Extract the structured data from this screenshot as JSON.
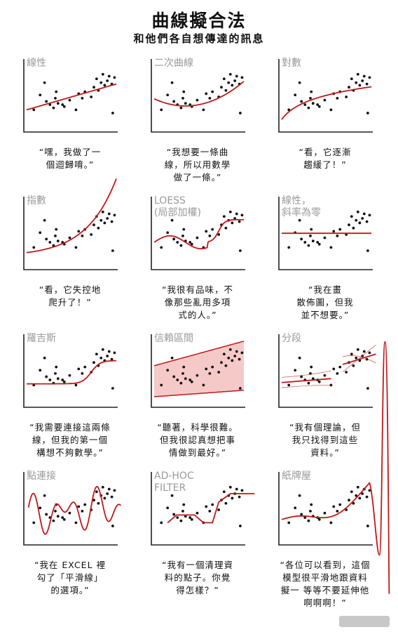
{
  "title": "曲線擬合法",
  "subtitle": "和他們各自想傳達的訊息",
  "panels": [
    {
      "label": "線性",
      "caption": "“嘿，我做了一\n個迴歸唷。”"
    },
    {
      "label": "二次曲線",
      "caption": "“我想要一條曲\n線，所以用數學\n做了一條。”"
    },
    {
      "label": "對數",
      "caption": "“看，它逐漸\n趨緩了！”"
    },
    {
      "label": "指數",
      "caption": "“看，它失控地\n爬升了！”"
    },
    {
      "label": "LOESS\n(局部加權)",
      "caption": "“我很有品味，不\n像那些亂用多項\n式的人。”"
    },
    {
      "label": "線性，\n斜率為零",
      "caption": "“我在畫\n散佈圖，但我\n並不想要。”"
    },
    {
      "label": "羅吉斯",
      "caption": "“我需要連接這兩條\n線，但我的第一個\n構想不夠數學。”"
    },
    {
      "label": "信賴區間",
      "caption": "“聽著，科學很難。\n但我很認真想把事\n情做到最好。”"
    },
    {
      "label": "分段",
      "caption": "“我有個理論，但\n我只找得到這些\n資料。”"
    },
    {
      "label": "點連接",
      "caption": "“我在 EXCEL 裡\n勾了「平滑線」\n的選項。”"
    },
    {
      "label": "AD-HOC\nFILTER",
      "caption": "“我有一個清理資\n料的點子。你覺\n得怎樣？”"
    },
    {
      "label": "紙牌屋",
      "caption": "“各位可以看到，這個\n模型很平滑地跟資料\n擬一 等等不要延伸他\n啊啊啊！”"
    }
  ],
  "chart_data": {
    "type": "scatter",
    "title": "曲線擬合法",
    "subtitle": "和他們各自想傳達的訊息",
    "points": [
      [
        0.08,
        0.3
      ],
      [
        0.15,
        0.53
      ],
      [
        0.22,
        0.43
      ],
      [
        0.26,
        0.38
      ],
      [
        0.3,
        0.33
      ],
      [
        0.32,
        0.48
      ],
      [
        0.35,
        0.4
      ],
      [
        0.4,
        0.38
      ],
      [
        0.42,
        0.35
      ],
      [
        0.48,
        0.45
      ],
      [
        0.55,
        0.3
      ],
      [
        0.58,
        0.55
      ],
      [
        0.62,
        0.48
      ],
      [
        0.65,
        0.58
      ],
      [
        0.72,
        0.5
      ],
      [
        0.75,
        0.65
      ],
      [
        0.78,
        0.78
      ],
      [
        0.8,
        0.6
      ],
      [
        0.83,
        0.72
      ],
      [
        0.85,
        0.85
      ],
      [
        0.87,
        0.68
      ],
      [
        0.9,
        0.75
      ],
      [
        0.92,
        0.82
      ],
      [
        0.95,
        0.7
      ],
      [
        0.96,
        0.25
      ],
      [
        0.98,
        0.8
      ],
      [
        0.33,
        0.58
      ],
      [
        0.2,
        0.72
      ]
    ],
    "series": [
      {
        "name": "線性",
        "fit": "linear"
      },
      {
        "name": "二次曲線",
        "fit": "quadratic"
      },
      {
        "name": "對數",
        "fit": "logarithmic"
      },
      {
        "name": "指數",
        "fit": "exponential"
      },
      {
        "name": "LOESS",
        "fit": "loess"
      },
      {
        "name": "線性，斜率為零",
        "fit": "constant"
      },
      {
        "name": "羅吉斯",
        "fit": "logistic"
      },
      {
        "name": "信賴區間",
        "fit": "confidence-band"
      },
      {
        "name": "分段",
        "fit": "piecewise"
      },
      {
        "name": "點連接",
        "fit": "spline"
      },
      {
        "name": "AD-HOC FILTER",
        "fit": "ad-hoc"
      },
      {
        "name": "紙牌屋",
        "fit": "polynomial-extrapolated"
      }
    ],
    "colors": {
      "fit": "#c21818",
      "band": "#f6c9c9",
      "axis": "#222222",
      "label": "#9a9a9a"
    }
  }
}
